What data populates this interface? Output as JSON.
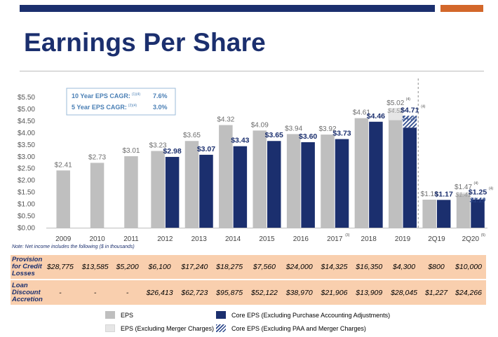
{
  "page_title": "Earnings Per Share",
  "colors": {
    "eps": "#bfbfbf",
    "eps_excl_merger": "#e6e6e6",
    "core_eps": "#1b2f6e",
    "accent_text": "#4a7fb5",
    "table_fill": "#f9cfae",
    "topbar_navy": "#1b2f6e",
    "topbar_orange": "#d3672a"
  },
  "cagr": [
    {
      "label": "10 Year EPS CAGR:",
      "sup": "(1)(4)",
      "value": "7.6%"
    },
    {
      "label": "5 Year EPS CAGR:",
      "sup": "(2)(4)",
      "value": "3.0%"
    }
  ],
  "note": "Note: Net income includes the following ($ in thousands)",
  "table": {
    "rows": [
      {
        "label": "Provision for Credit Losses",
        "values": [
          "$28,775",
          "$13,585",
          "$5,200",
          "$6,100",
          "$17,240",
          "$18,275",
          "$7,560",
          "$24,000",
          "$14,325",
          "$16,350",
          "$4,300",
          "$800",
          "$10,000"
        ]
      },
      {
        "label": "Loan Discount Accretion",
        "values": [
          "-",
          "-",
          "-",
          "$26,413",
          "$62,723",
          "$95,875",
          "$52,122",
          "$38,970",
          "$21,906",
          "$13,909",
          "$28,045",
          "$1,227",
          "$24,266"
        ]
      }
    ]
  },
  "legend": [
    {
      "label": "EPS",
      "swatch": "eps"
    },
    {
      "label": "EPS (Excluding Merger Charges)",
      "swatch": "eps_excl_merger"
    },
    {
      "label": "Core EPS (Excluding Purchase Accounting Adjustments)",
      "swatch": "core_eps"
    },
    {
      "label": "Core EPS (Excluding PAA and Merger Charges)",
      "swatch": "core_hatched"
    }
  ],
  "chart_data": {
    "type": "bar",
    "categories": [
      "2009",
      "2010",
      "2011",
      "2012",
      "2013",
      "2014",
      "2015",
      "2016",
      "2017",
      "2018",
      "2019",
      "2Q19",
      "2Q20"
    ],
    "category_sups": [
      "",
      "",
      "",
      "",
      "",
      "",
      "",
      "",
      "(3)",
      "",
      "",
      "",
      "(5)"
    ],
    "series": [
      {
        "name": "EPS",
        "values": [
          2.41,
          2.73,
          3.01,
          3.23,
          3.65,
          4.32,
          4.09,
          3.94,
          3.92,
          4.61,
          4.52,
          1.18,
          1.41
        ]
      },
      {
        "name": "EPS (Excluding Merger Charges)",
        "values": [
          null,
          null,
          null,
          null,
          null,
          null,
          null,
          null,
          null,
          null,
          5.02,
          null,
          1.47
        ]
      },
      {
        "name": "Core EPS (Excluding Purchase Accounting Adjustments)",
        "values": [
          null,
          null,
          null,
          2.98,
          3.07,
          3.43,
          3.65,
          3.6,
          3.73,
          4.46,
          4.21,
          1.17,
          1.19
        ]
      },
      {
        "name": "Core EPS (Excluding PAA and Merger Charges)",
        "values": [
          null,
          null,
          null,
          null,
          null,
          null,
          null,
          null,
          null,
          null,
          4.71,
          null,
          1.25
        ]
      }
    ],
    "eps_labels": [
      "$2.41",
      "$2.73",
      "$3.01",
      "$3.23",
      "$3.65",
      "$4.32",
      "$4.09",
      "$3.94",
      "$3.92",
      "$4.61",
      "$5.02",
      "$1.18",
      "$1.47"
    ],
    "eps_sub_labels": [
      "",
      "",
      "",
      "",
      "",
      "",
      "",
      "",
      "",
      "",
      "$4.52",
      "",
      "$1.41"
    ],
    "core_labels": [
      "",
      "",
      "",
      "$2.98",
      "$3.07",
      "$3.43",
      "$3.65",
      "$3.60",
      "$3.73",
      "$4.46",
      "$4.71",
      "$1.17",
      "$1.25"
    ],
    "core_sub_labels": [
      "",
      "",
      "",
      "",
      "",
      "",
      "",
      "",
      "",
      "",
      "$4.21",
      "",
      "$1.19"
    ],
    "eps_label_sups": [
      "",
      "",
      "",
      "",
      "",
      "",
      "",
      "",
      "",
      "",
      "(4)",
      "",
      "(4)"
    ],
    "core_label_sups": [
      "",
      "",
      "",
      "",
      "",
      "",
      "",
      "",
      "",
      "",
      "(4)",
      "",
      "(4)"
    ],
    "y_ticks": [
      "$0.00",
      "$0.50",
      "$1.00",
      "$1.50",
      "$2.00",
      "$2.50",
      "$3.00",
      "$3.50",
      "$4.00",
      "$4.50",
      "$5.00",
      "$5.50"
    ],
    "ylim": [
      0,
      5.5
    ],
    "grid": false,
    "legend_position": "bottom"
  }
}
